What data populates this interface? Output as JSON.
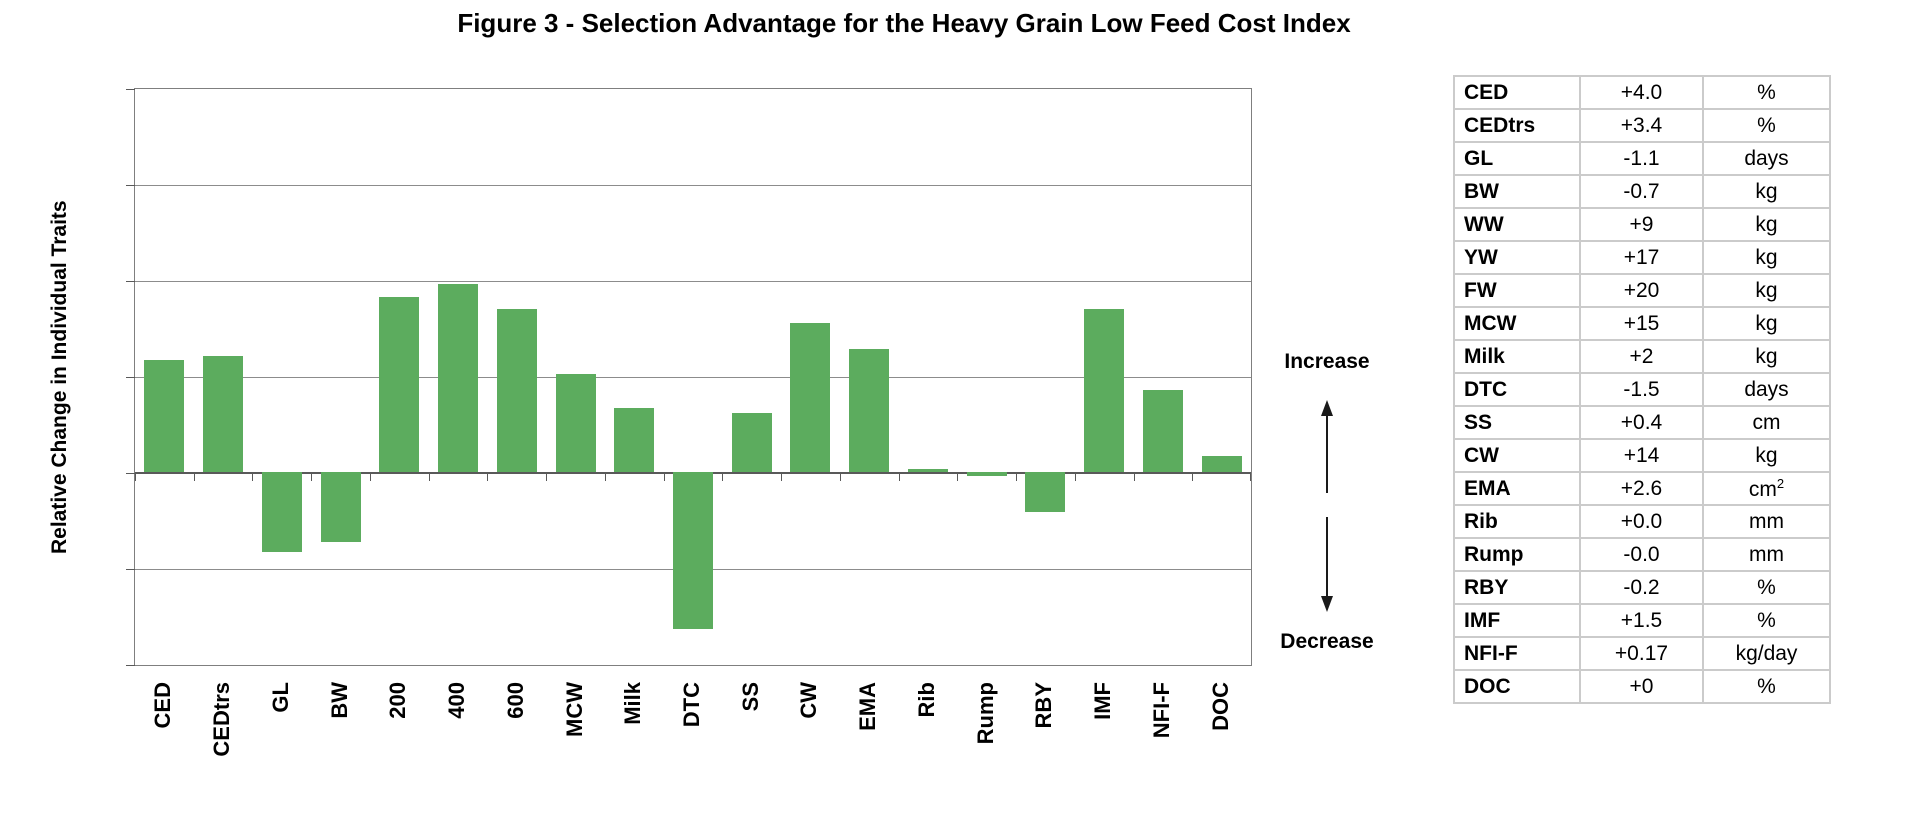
{
  "chart_data": {
    "type": "bar",
    "title": "Figure 3 - Selection Advantage for the Heavy Grain Low Feed Cost Index",
    "xlabel": "",
    "ylabel": "Relative Change in Individual Traits",
    "categories": [
      "CED",
      "CEDtrs",
      "GL",
      "BW",
      "200",
      "400",
      "600",
      "MCW",
      "Milk",
      "DTC",
      "SS",
      "CW",
      "EMA",
      "Rib",
      "Rump",
      "RBY",
      "IMF",
      "NFI-F",
      "DOC"
    ],
    "values": [
      1.18,
      1.22,
      -0.82,
      -0.72,
      1.83,
      1.97,
      1.71,
      1.03,
      0.68,
      -1.63,
      0.62,
      1.56,
      1.29,
      0.04,
      -0.03,
      -0.41,
      1.71,
      0.86,
      0.18
    ],
    "ylim": [
      -2,
      4
    ],
    "gridline_step": 1,
    "y_tick_labels": "none",
    "legend": "none",
    "bar_color": "#5cac5e",
    "gridline_color": "#8c8c8c",
    "axis_color": "#595959",
    "frame_color": "#7f7f7f",
    "annotations": {
      "increase": "Increase",
      "decrease": "Decrease"
    }
  },
  "side_table": {
    "rows": [
      {
        "trait": "CED",
        "value": "+4.0",
        "unit": "%"
      },
      {
        "trait": "CEDtrs",
        "value": "+3.4",
        "unit": "%"
      },
      {
        "trait": "GL",
        "value": "-1.1",
        "unit": "days"
      },
      {
        "trait": "BW",
        "value": "-0.7",
        "unit": "kg"
      },
      {
        "trait": "WW",
        "value": "+9",
        "unit": "kg"
      },
      {
        "trait": "YW",
        "value": "+17",
        "unit": "kg"
      },
      {
        "trait": "FW",
        "value": "+20",
        "unit": "kg"
      },
      {
        "trait": "MCW",
        "value": "+15",
        "unit": "kg"
      },
      {
        "trait": "Milk",
        "value": "+2",
        "unit": "kg"
      },
      {
        "trait": "DTC",
        "value": "-1.5",
        "unit": "days"
      },
      {
        "trait": "SS",
        "value": "+0.4",
        "unit": "cm"
      },
      {
        "trait": "CW",
        "value": "+14",
        "unit": "kg"
      },
      {
        "trait": "EMA",
        "value": "+2.6",
        "unit": "cm",
        "unit_sup": "2"
      },
      {
        "trait": "Rib",
        "value": "+0.0",
        "unit": "mm"
      },
      {
        "trait": "Rump",
        "value": "-0.0",
        "unit": "mm"
      },
      {
        "trait": "RBY",
        "value": "-0.2",
        "unit": "%"
      },
      {
        "trait": "IMF",
        "value": "+1.5",
        "unit": "%"
      },
      {
        "trait": "NFI-F",
        "value": "+0.17",
        "unit": "kg/day"
      },
      {
        "trait": "DOC",
        "value": "+0",
        "unit": "%"
      }
    ]
  }
}
